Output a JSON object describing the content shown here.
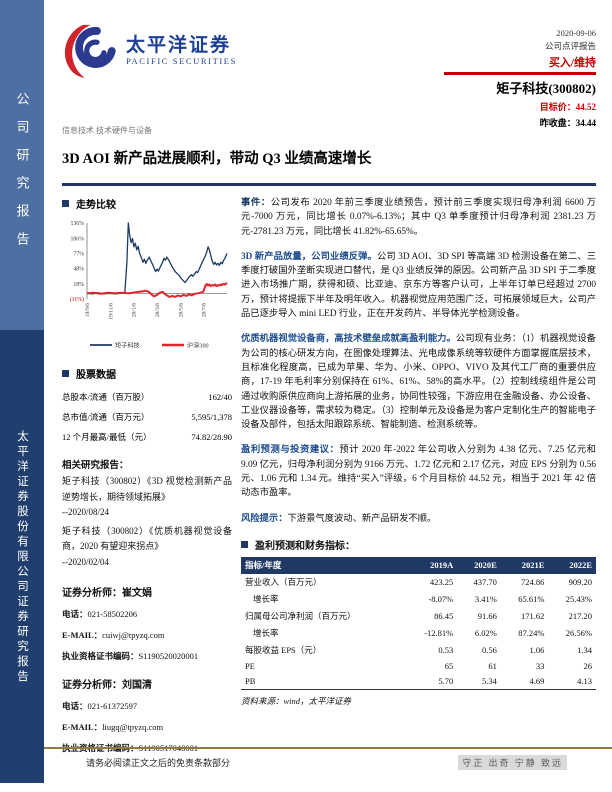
{
  "brand": {
    "name_cn": "太平洋证券",
    "name_en": "PACIFIC SECURITIES"
  },
  "sidebar": {
    "top": "公司研究报告",
    "bottom": "太平洋证券股份有限公司证券研究报告"
  },
  "header": {
    "date": "2020-09-06",
    "report_type": "公司点评报告",
    "rating": "买入/维持",
    "stock": "矩子科技(300802)",
    "target_price": "目标价：44.52",
    "prev_close": "昨收盘：34.44",
    "industry": "信息技术 技术硬件与设备"
  },
  "title": "3D AOI 新产品进展顺利，带动 Q3 业绩高速增长",
  "left": {
    "trend_section": "走势比较",
    "stock_section": "股票数据",
    "stock_rows": [
      {
        "label": "总股本/流通（百万股）",
        "value": "162/40"
      },
      {
        "label": "总市值/流通（百万元）",
        "value": "5,595/1,378"
      },
      {
        "label": "12 个月最高/最低（元）",
        "value": "74.82/28.90"
      }
    ],
    "related_title": "相关研究报告：",
    "related": [
      {
        "text": "矩子科技（300802）《3D 视觉检测新产品逆势增长，期待领域拓展》",
        "date": "--2020/08/24"
      },
      {
        "text": "矩子科技（300802）《优质机器视觉设备商，2020 有望迎来拐点》",
        "date": "--2020/02/04"
      }
    ],
    "labels": {
      "role": "证券分析师：",
      "phone": "电话：",
      "email": "E-MAIL：",
      "cert": "执业资格证书编码："
    },
    "analysts": [
      {
        "name": "崔文娟",
        "phone": "021-58502206",
        "email": "cuiwj@tpyzq.com",
        "cert": "S1190520020001"
      },
      {
        "name": "刘国清",
        "phone": "021-61372597",
        "email": "liugq@tpyzq.com",
        "cert": "S1190517040001"
      }
    ]
  },
  "body": {
    "paragraphs": [
      {
        "lead": "事件：",
        "lead_color": "#17375e",
        "text": "公司发布 2020 年前三季度业绩预告，预计前三季度实现归母净利润 6600 万元-7000 万元，同比增长 0.07%-6.13%；其中 Q3 单季度预计归母净利润 2381.23 万元-2781.23 万元，同比增长 41.82%-65.65%。"
      },
      {
        "lead": "3D 新产品放量，公司业绩反弹。",
        "lead_color": "#1f4e8f",
        "text": "公司 3D AOI、3D SPI 等高端 3D 检测设备在第二、三季度打破国外垄断实现进口替代，是 Q3 业绩反弹的原因。公司新产品 3D SPI 于二季度进入市场推广期，获得和硕、比亚迪、京东方等客户认可，上半年订单已经超过 2700 万，预计将提振下半年及明年收入。机器视觉应用范围广泛，可拓展领域巨大，公司产品已逐步导入 mini LED 行业，正在开发药片、半导体光学检测设备。"
      },
      {
        "lead": "优质机器视觉设备商，高技术壁垒成就高盈利能力。",
        "lead_color": "#1f4e8f",
        "text": "公司现有业务：（1）机器视觉设备为公司的核心研发方向，在图像处理算法、光电成像系统等软硬件方面掌握底层技术，且标准化程度高，已成为苹果、华为、小米、OPPO、VIVO 及其代工厂商的重要供应商，17-19 年毛利率分别保持在 61%、61%、58%的高水平。（2）控制线缆组件是公司通过收购原供应商向上游拓展的业务，协同性较强，下游应用在金融设备、办公设备、工业仪器设备等，需求较为稳定。（3）控制单元及设备是为客户定制化生产的智能电子设备及部件，包括太阳跟踪系统、智能制造、检测系统等。"
      },
      {
        "lead": "盈利预测与投资建议：",
        "lead_color": "#1f4e8f",
        "text": "预计 2020 年-2022 年公司收入分别为 4.38 亿元、7.25 亿元和 9.09 亿元，归母净利润分别为 9166 万元、1.72 亿元和 2.17 亿元，对应 EPS 分别为 0.56 元、1.06 元和 1.34 元。维持“买入”评级，6 个月目标价 44.52 元，相当于 2021 年 42 倍动态市盈率。"
      },
      {
        "lead": "风险提示：",
        "lead_color": "#1f4e8f",
        "text": "下游景气度波动、新产品研发不顺。"
      }
    ],
    "table_section": "盈利预测和财务指标：",
    "table": {
      "headers": [
        "指标/年度",
        "2019A",
        "2020E",
        "2021E",
        "2022E"
      ],
      "rows": [
        {
          "cells": [
            "营业收入（百万元）",
            "423.25",
            "437.70",
            "724.86",
            "909.20"
          ],
          "indent": false
        },
        {
          "cells": [
            "增长率",
            "-8.07%",
            "3.41%",
            "65.61%",
            "25.43%"
          ],
          "indent": true
        },
        {
          "cells": [
            "归属母公司净利润（百万元）",
            "86.45",
            "91.66",
            "171.62",
            "217.20"
          ],
          "indent": false
        },
        {
          "cells": [
            "增长率",
            "-12.81%",
            "6.02%",
            "87.24%",
            "26.56%"
          ],
          "indent": true
        },
        {
          "cells": [
            "每股收益 EPS（元）",
            "0.53",
            "0.56",
            "1.06",
            "1.34"
          ],
          "indent": false
        },
        {
          "cells": [
            "PE",
            "65",
            "61",
            "33",
            "26"
          ],
          "indent": false
        },
        {
          "cells": [
            "PB",
            "5.70",
            "5.34",
            "4.69",
            "4.13"
          ],
          "indent": false
        }
      ]
    },
    "source": "资料来源：wind，太平洋证券"
  },
  "footer": {
    "left": "请务必阅读正文之后的免责条款部分",
    "right": "守正 出奇 宁静 致远"
  },
  "chart_data": {
    "type": "line",
    "title": "走势比较",
    "ylim": [
      -11,
      136
    ],
    "yticks": [
      136,
      106,
      77,
      48,
      18,
      -11
    ],
    "ytick_labels": [
      "136%",
      "106%",
      "77%",
      "48%",
      "18%",
      "(11%)"
    ],
    "xtick_labels": [
      "19/9/6",
      "19/11/6",
      "20/1/6",
      "20/3/6",
      "20/5/6",
      "20/7/6"
    ],
    "xtick_pos": [
      0,
      0.1667,
      0.3333,
      0.5,
      0.6667,
      0.8333
    ],
    "legend_position": "bottom",
    "series": [
      {
        "name": "矩子科技",
        "color": "#1f3864",
        "width": 1.3,
        "points": [
          [
            0,
            0
          ],
          [
            0.04,
            -1
          ],
          [
            0.08,
            1
          ],
          [
            0.12,
            -1
          ],
          [
            0.16,
            0
          ],
          [
            0.2,
            -1
          ],
          [
            0.24,
            0
          ],
          [
            0.27,
            1
          ],
          [
            0.285,
            60
          ],
          [
            0.295,
            136
          ],
          [
            0.305,
            112
          ],
          [
            0.315,
            98
          ],
          [
            0.325,
            106
          ],
          [
            0.335,
            90
          ],
          [
            0.345,
            97
          ],
          [
            0.355,
            84
          ],
          [
            0.365,
            91
          ],
          [
            0.375,
            78
          ],
          [
            0.39,
            68
          ],
          [
            0.4,
            60
          ],
          [
            0.41,
            66
          ],
          [
            0.42,
            58
          ],
          [
            0.43,
            64
          ],
          [
            0.445,
            70
          ],
          [
            0.455,
            63
          ],
          [
            0.47,
            55
          ],
          [
            0.48,
            48
          ],
          [
            0.49,
            42
          ],
          [
            0.5,
            47
          ],
          [
            0.51,
            43
          ],
          [
            0.525,
            52
          ],
          [
            0.54,
            60
          ],
          [
            0.55,
            68
          ],
          [
            0.56,
            64
          ],
          [
            0.57,
            70
          ],
          [
            0.58,
            66
          ],
          [
            0.6,
            56
          ],
          [
            0.615,
            48
          ],
          [
            0.63,
            42
          ],
          [
            0.645,
            38
          ],
          [
            0.66,
            34
          ],
          [
            0.675,
            28
          ],
          [
            0.69,
            24
          ],
          [
            0.7,
            21
          ],
          [
            0.715,
            26
          ],
          [
            0.73,
            32
          ],
          [
            0.745,
            36
          ],
          [
            0.755,
            33
          ],
          [
            0.77,
            38
          ],
          [
            0.78,
            42
          ],
          [
            0.79,
            40
          ],
          [
            0.8,
            46
          ],
          [
            0.81,
            52
          ],
          [
            0.82,
            58
          ],
          [
            0.83,
            64
          ],
          [
            0.845,
            72
          ],
          [
            0.855,
            80
          ],
          [
            0.865,
            90
          ],
          [
            0.875,
            83
          ],
          [
            0.885,
            72
          ],
          [
            0.895,
            62
          ],
          [
            0.905,
            56
          ],
          [
            0.915,
            60
          ],
          [
            0.925,
            55
          ],
          [
            0.935,
            58
          ],
          [
            0.945,
            54
          ],
          [
            0.955,
            60
          ],
          [
            0.965,
            57
          ],
          [
            0.975,
            63
          ],
          [
            0.985,
            68
          ],
          [
            1,
            77
          ]
        ]
      },
      {
        "name": "沪深300",
        "color": "#e0242a",
        "width": 2,
        "points": [
          [
            0,
            0
          ],
          [
            0.05,
            1
          ],
          [
            0.1,
            -1
          ],
          [
            0.15,
            1
          ],
          [
            0.2,
            0
          ],
          [
            0.25,
            1
          ],
          [
            0.3,
            0
          ],
          [
            0.35,
            2
          ],
          [
            0.4,
            4
          ],
          [
            0.42,
            5
          ],
          [
            0.44,
            3
          ],
          [
            0.46,
            -2
          ],
          [
            0.48,
            -6
          ],
          [
            0.5,
            -3
          ],
          [
            0.52,
            1
          ],
          [
            0.54,
            3
          ],
          [
            0.55,
            0
          ],
          [
            0.57,
            -4
          ],
          [
            0.59,
            -7
          ],
          [
            0.61,
            -5
          ],
          [
            0.63,
            -7
          ],
          [
            0.65,
            -4
          ],
          [
            0.67,
            -6
          ],
          [
            0.69,
            -3
          ],
          [
            0.71,
            -5
          ],
          [
            0.73,
            -2
          ],
          [
            0.75,
            -4
          ],
          [
            0.77,
            -1
          ],
          [
            0.79,
            0
          ],
          [
            0.81,
            1
          ],
          [
            0.83,
            3
          ],
          [
            0.845,
            14
          ],
          [
            0.855,
            18
          ],
          [
            0.865,
            15
          ],
          [
            0.875,
            17
          ],
          [
            0.885,
            14
          ],
          [
            0.895,
            16
          ],
          [
            0.905,
            15
          ],
          [
            0.915,
            17
          ],
          [
            0.925,
            14
          ],
          [
            0.935,
            16
          ],
          [
            0.945,
            15
          ],
          [
            0.955,
            17
          ],
          [
            0.965,
            16
          ],
          [
            0.975,
            18
          ],
          [
            0.985,
            17
          ],
          [
            1,
            20
          ]
        ]
      }
    ]
  }
}
